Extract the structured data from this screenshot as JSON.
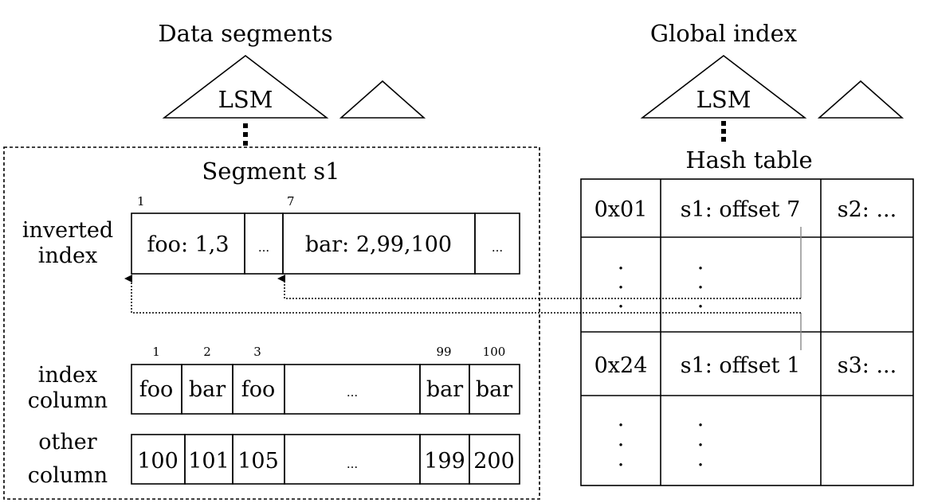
{
  "left_title": "Data segments",
  "right_title": "Global index",
  "lsm_left": "LSM",
  "lsm_right": "LSM",
  "segment_title": "Segment s1",
  "hash_title": "Hash table",
  "inverted": {
    "row_label_1": "inverted",
    "row_label_2": "index",
    "offset_a": "1",
    "offset_b": "7",
    "cells": [
      "foo: 1,3",
      "...",
      "bar: 2,99,100",
      "..."
    ]
  },
  "index_column": {
    "row_label_1": "index",
    "row_label_2": "column",
    "offsets": [
      "1",
      "2",
      "3",
      "99",
      "100"
    ],
    "cells": [
      "foo",
      "bar",
      "foo",
      "...",
      "bar",
      "bar"
    ]
  },
  "other_column": {
    "row_label_1": "other",
    "row_label_2": "column",
    "cells": [
      "100",
      "101",
      "105",
      "...",
      "199",
      "200"
    ]
  },
  "hash_rows": [
    {
      "key": "0x01",
      "entry": "s1: offset 7",
      "next": "s2: ..."
    },
    {
      "key": ".",
      "entry": ".",
      "next": ""
    },
    {
      "key": "0x24",
      "entry": "s1: offset 1",
      "next": "s3: ..."
    },
    {
      "key": ".",
      "entry": ".",
      "next": ""
    }
  ]
}
